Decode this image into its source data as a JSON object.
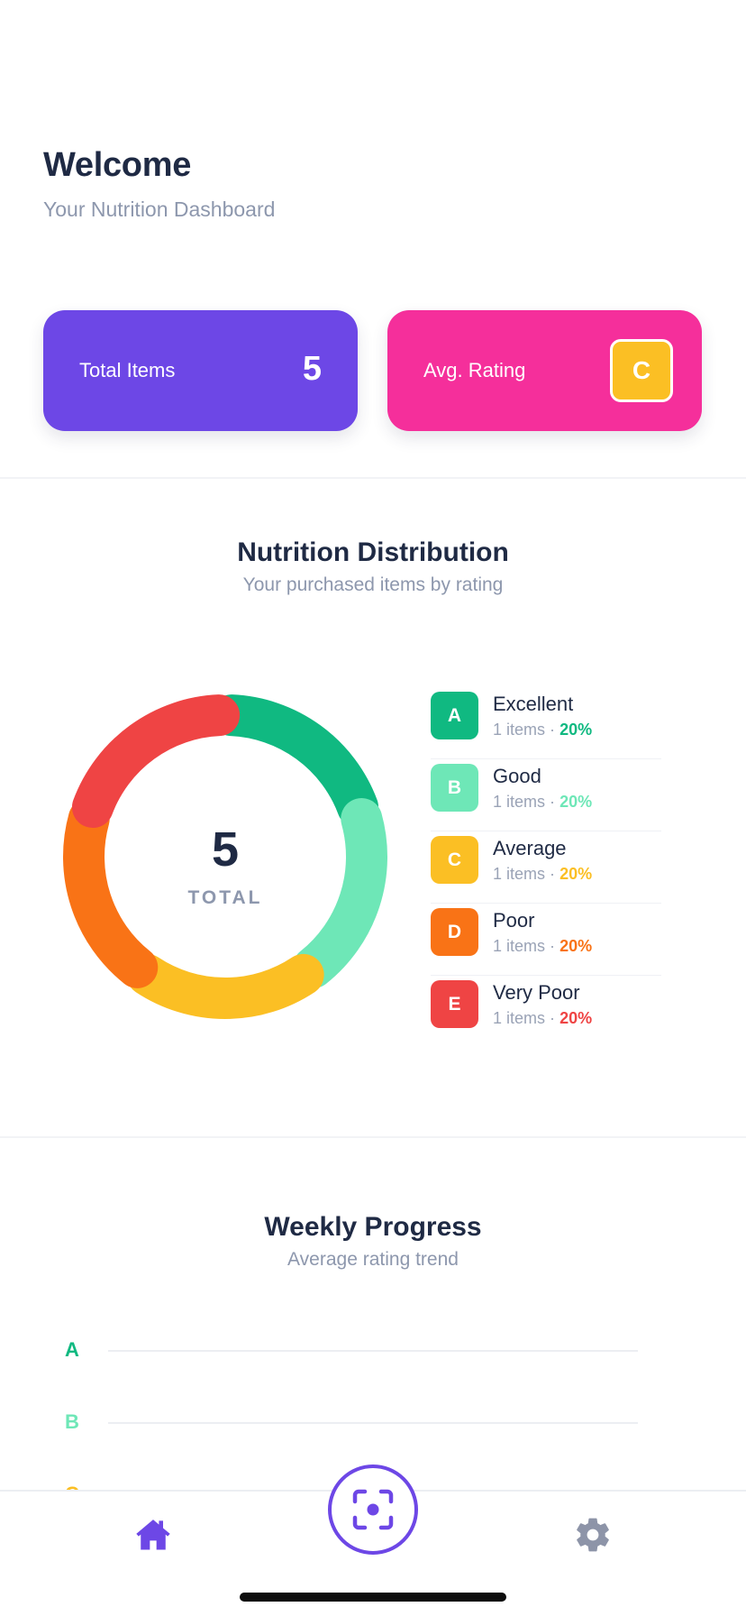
{
  "header": {
    "title": "Welcome",
    "subtitle": "Your Nutrition Dashboard"
  },
  "stats": {
    "total_items_label": "Total Items",
    "total_items_value": "5",
    "avg_rating_label": "Avg. Rating",
    "avg_rating_value": "C",
    "colors": {
      "total_card": "#6d47e6",
      "rating_card": "#f52f9b",
      "rating_badge": "#fbbf24"
    }
  },
  "distribution": {
    "title": "Nutrition Distribution",
    "subtitle": "Your purchased items by rating",
    "center_value": "5",
    "center_label": "TOTAL",
    "items": [
      {
        "grade": "A",
        "name": "Excellent",
        "count_text": "1 items",
        "separator": "·",
        "percent": "20%",
        "color": "#10b981"
      },
      {
        "grade": "B",
        "name": "Good",
        "count_text": "1 items",
        "separator": "·",
        "percent": "20%",
        "color": "#6ee7b7"
      },
      {
        "grade": "C",
        "name": "Average",
        "count_text": "1 items",
        "separator": "·",
        "percent": "20%",
        "color": "#fbbf24"
      },
      {
        "grade": "D",
        "name": "Poor",
        "count_text": "1 items",
        "separator": "·",
        "percent": "20%",
        "color": "#f97316"
      },
      {
        "grade": "E",
        "name": "Very Poor",
        "count_text": "1 items",
        "separator": "·",
        "percent": "20%",
        "color": "#ef4444"
      }
    ]
  },
  "chart_data": {
    "type": "pie",
    "categories": [
      "A",
      "B",
      "C",
      "D",
      "E"
    ],
    "values": [
      1,
      1,
      1,
      1,
      1
    ],
    "colors": [
      "#10b981",
      "#6ee7b7",
      "#fbbf24",
      "#f97316",
      "#ef4444"
    ]
  },
  "weekly": {
    "title": "Weekly Progress",
    "subtitle": "Average rating trend",
    "grades": [
      {
        "label": "A",
        "color": "#10b981"
      },
      {
        "label": "B",
        "color": "#6ee7b7"
      },
      {
        "label": "C",
        "color": "#fbbf24"
      }
    ]
  },
  "tabbar": {
    "home_icon": "home-icon",
    "scan_icon": "scan-icon",
    "settings_icon": "gear-icon",
    "active_color": "#6d47e6",
    "inactive_color": "#8d94a8"
  }
}
